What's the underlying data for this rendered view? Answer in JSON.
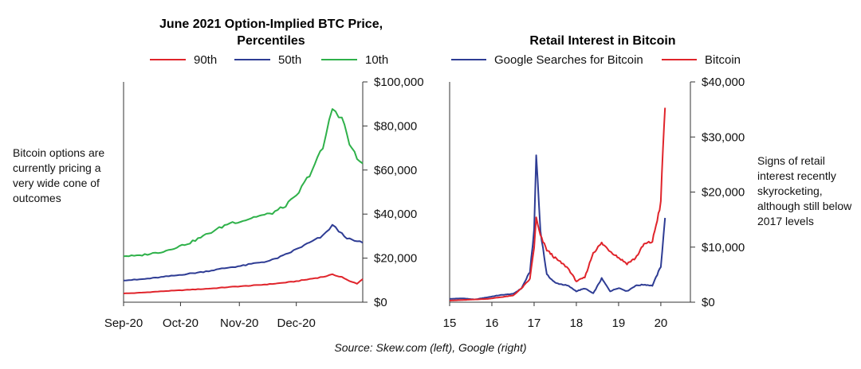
{
  "left_annotation": "Bitcoin options are currently pricing a very wide cone of outcomes",
  "right_annotation": "Signs of retail interest recently skyrocketing, although still below 2017 levels",
  "source": "Source: Skew.com (left), Google (right)",
  "chart_data": [
    {
      "type": "line",
      "title": "June 2021 Option-Implied BTC Price, Percentiles",
      "title_lines": [
        "June 2021 Option-Implied BTC Price,",
        "Percentiles"
      ],
      "x_tick_labels": [
        "Sep-20",
        "Oct-20",
        "Nov-20",
        "Dec-20"
      ],
      "x_ticks": [
        "2020-09-01",
        "2020-10-01",
        "2020-11-01",
        "2020-12-01"
      ],
      "xlim": [
        "2020-09-01",
        "2021-01-05"
      ],
      "ylim": [
        0,
        100000
      ],
      "y_ticks": [
        0,
        20000,
        40000,
        60000,
        80000,
        100000
      ],
      "y_tick_labels": [
        "$0",
        "$20,000",
        "$40,000",
        "$60,000",
        "$80,000",
        "$100,000"
      ],
      "y_axis_side": "right",
      "legend_position": "top",
      "grid": false,
      "series": [
        {
          "name": "90th",
          "color": "#e0242b",
          "x": [
            "2020-09-01",
            "2020-09-08",
            "2020-09-15",
            "2020-09-22",
            "2020-09-29",
            "2020-10-06",
            "2020-10-13",
            "2020-10-20",
            "2020-10-27",
            "2020-11-03",
            "2020-11-10",
            "2020-11-17",
            "2020-11-24",
            "2020-12-01",
            "2020-12-08",
            "2020-12-15",
            "2020-12-20",
            "2020-12-25",
            "2020-12-29",
            "2021-01-02",
            "2021-01-05"
          ],
          "values": [
            4000,
            4200,
            4600,
            5000,
            5300,
            5700,
            6000,
            6400,
            6900,
            7300,
            7700,
            8200,
            8800,
            9500,
            10500,
            11500,
            12500,
            11500,
            9500,
            8500,
            10500
          ]
        },
        {
          "name": "50th",
          "color": "#2e3c94",
          "x": [
            "2020-09-01",
            "2020-09-08",
            "2020-09-15",
            "2020-09-22",
            "2020-09-29",
            "2020-10-06",
            "2020-10-13",
            "2020-10-20",
            "2020-10-27",
            "2020-11-03",
            "2020-11-10",
            "2020-11-17",
            "2020-11-24",
            "2020-12-01",
            "2020-12-08",
            "2020-12-15",
            "2020-12-20",
            "2020-12-25",
            "2020-12-29",
            "2021-01-02",
            "2021-01-05"
          ],
          "values": [
            10000,
            10200,
            10800,
            11500,
            12200,
            13000,
            13800,
            14800,
            15800,
            16600,
            17800,
            18800,
            21000,
            24000,
            27000,
            30000,
            35000,
            31000,
            28500,
            27500,
            27000
          ]
        },
        {
          "name": "10th",
          "color": "#2fb14a",
          "x": [
            "2020-09-01",
            "2020-09-08",
            "2020-09-15",
            "2020-09-22",
            "2020-09-29",
            "2020-10-06",
            "2020-10-13",
            "2020-10-20",
            "2020-10-27",
            "2020-11-03",
            "2020-11-10",
            "2020-11-17",
            "2020-11-24",
            "2020-12-01",
            "2020-12-08",
            "2020-12-15",
            "2020-12-20",
            "2020-12-25",
            "2020-12-29",
            "2021-01-02",
            "2021-01-05"
          ],
          "values": [
            21000,
            21000,
            22000,
            23000,
            25000,
            27000,
            30000,
            33000,
            36000,
            37000,
            39000,
            40000,
            43000,
            48000,
            58000,
            70000,
            88000,
            84000,
            72000,
            65000,
            63000
          ]
        }
      ]
    },
    {
      "type": "line",
      "title": "Retail Interest in Bitcoin",
      "x_tick_labels": [
        "15",
        "16",
        "17",
        "18",
        "19",
        "20"
      ],
      "x_ticks": [
        2015,
        2016,
        2017,
        2018,
        2019,
        2020
      ],
      "xlim": [
        2015,
        2020.7
      ],
      "ylim": [
        0,
        40000
      ],
      "y_ticks": [
        0,
        10000,
        20000,
        30000,
        40000
      ],
      "y_tick_labels": [
        "$0",
        "$10,000",
        "$20,000",
        "$30,000",
        "$40,000"
      ],
      "y_axis_side": "right",
      "legend_position": "top",
      "grid": false,
      "series": [
        {
          "name": "Google Searches for Bitcoin",
          "color": "#2e3c94",
          "x": [
            2015,
            2015.3,
            2015.6,
            2015.9,
            2016.2,
            2016.5,
            2016.7,
            2016.9,
            2017.0,
            2017.05,
            2017.15,
            2017.3,
            2017.5,
            2017.8,
            2018.0,
            2018.2,
            2018.4,
            2018.6,
            2018.8,
            2019.0,
            2019.2,
            2019.4,
            2019.6,
            2019.8,
            2020.0,
            2020.1
          ],
          "values": [
            600,
            700,
            500,
            900,
            1300,
            1500,
            2500,
            5500,
            13000,
            26800,
            13000,
            5000,
            3500,
            3000,
            2000,
            2500,
            1600,
            4300,
            2000,
            2600,
            2000,
            3000,
            3200,
            3000,
            6500,
            15300
          ]
        },
        {
          "name": "Bitcoin",
          "color": "#e0242b",
          "x": [
            2015,
            2015.3,
            2015.6,
            2015.9,
            2016.2,
            2016.5,
            2016.7,
            2016.9,
            2017.0,
            2017.05,
            2017.15,
            2017.3,
            2017.5,
            2017.8,
            2018.0,
            2018.2,
            2018.4,
            2018.6,
            2018.8,
            2019.0,
            2019.2,
            2019.4,
            2019.6,
            2019.8,
            2020.0,
            2020.05,
            2020.1
          ],
          "values": [
            300,
            400,
            500,
            600,
            900,
            1200,
            2500,
            4200,
            10000,
            15200,
            12000,
            9500,
            8000,
            6200,
            3800,
            4500,
            9000,
            10700,
            9300,
            8100,
            7000,
            8000,
            10500,
            11000,
            18000,
            28000,
            35300
          ]
        }
      ]
    }
  ]
}
